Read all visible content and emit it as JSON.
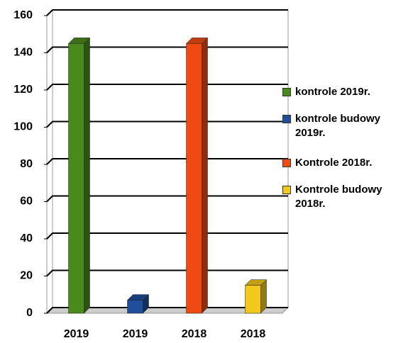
{
  "chart_data": {
    "type": "bar3d",
    "categories": [
      "2019",
      "2019",
      "2018",
      "2018"
    ],
    "series": [
      {
        "name": "kontrole 2019r.",
        "color": "#4a8a1c",
        "values": [
          145,
          null,
          null,
          null
        ]
      },
      {
        "name": "kontrole budowy 2019r.",
        "color": "#1f4e9c",
        "values": [
          null,
          7,
          null,
          null
        ]
      },
      {
        "name": "Kontrole 2018r.",
        "color": "#f04a12",
        "values": [
          null,
          null,
          145,
          null
        ]
      },
      {
        "name": "Kontrole budowy 2018r.",
        "color": "#f2c81c",
        "values": [
          null,
          null,
          null,
          15
        ]
      }
    ],
    "ylim": [
      0,
      160
    ],
    "yticks": [
      0,
      20,
      40,
      60,
      80,
      100,
      120,
      140,
      160
    ],
    "grid": true
  }
}
